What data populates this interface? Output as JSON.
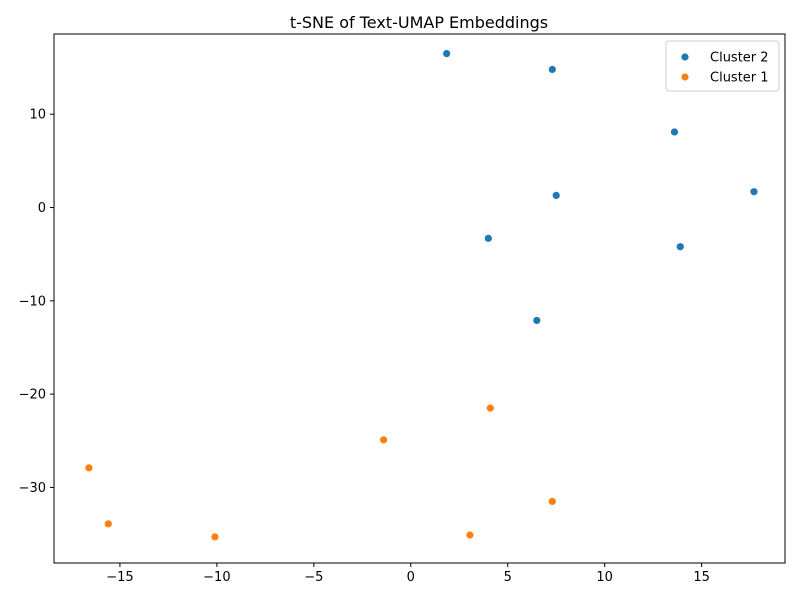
{
  "chart_data": {
    "type": "scatter",
    "title": "t-SNE of Text-UMAP Embeddings",
    "xlabel": "",
    "ylabel": "",
    "xlim": [
      -18.4,
      19.3
    ],
    "ylim": [
      -38.1,
      18.6
    ],
    "xticks": [
      -15,
      -10,
      -5,
      0,
      5,
      10,
      15
    ],
    "yticks": [
      -30,
      -20,
      -10,
      0,
      10
    ],
    "tick_labels_x": [
      "−15",
      "−10",
      "−5",
      "0",
      "5",
      "10",
      "15"
    ],
    "tick_labels_y": [
      "−30",
      "−20",
      "−10",
      "0",
      "10"
    ],
    "grid": false,
    "legend_position": "top-right",
    "series": [
      {
        "name": "Cluster 2",
        "color": "#1f77b4",
        "points": [
          {
            "x": 1.85,
            "y": 16.5
          },
          {
            "x": 7.3,
            "y": 14.8
          },
          {
            "x": 13.6,
            "y": 8.1
          },
          {
            "x": 17.7,
            "y": 1.7
          },
          {
            "x": 7.5,
            "y": 1.3
          },
          {
            "x": 4.0,
            "y": -3.3
          },
          {
            "x": 13.9,
            "y": -4.2
          },
          {
            "x": 6.5,
            "y": -12.1
          }
        ]
      },
      {
        "name": "Cluster 1",
        "color": "#ff7f0e",
        "points": [
          {
            "x": 4.1,
            "y": -21.5
          },
          {
            "x": -1.4,
            "y": -24.9
          },
          {
            "x": -16.6,
            "y": -27.9
          },
          {
            "x": 7.3,
            "y": -31.5
          },
          {
            "x": -15.6,
            "y": -33.9
          },
          {
            "x": 3.05,
            "y": -35.1
          },
          {
            "x": -10.1,
            "y": -35.3
          }
        ]
      }
    ]
  }
}
